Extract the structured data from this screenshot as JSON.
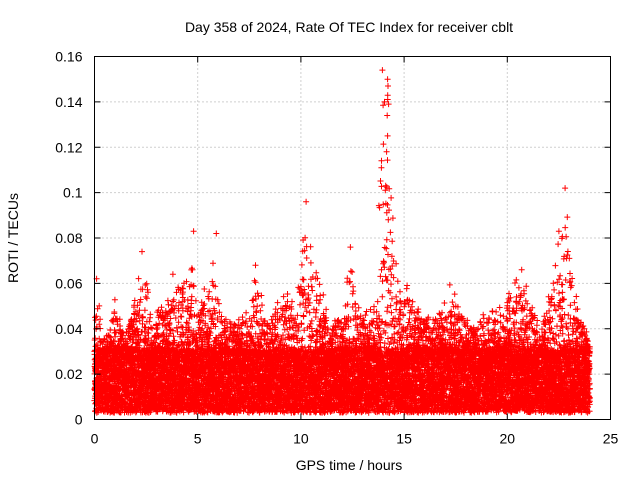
{
  "chart_data": {
    "type": "scatter",
    "title": "Day 358 of 2024, Rate Of TEC Index for receiver cblt",
    "xlabel": "GPS time / hours",
    "ylabel": "ROTI / TECUs",
    "xlim": [
      0,
      25
    ],
    "ylim": [
      0,
      0.16
    ],
    "x_ticks": [
      0,
      5,
      10,
      15,
      20,
      25
    ],
    "x_tick_labels": [
      "0",
      "5",
      "10",
      "15",
      "20",
      "25"
    ],
    "y_ticks": [
      0,
      0.02,
      0.04,
      0.06,
      0.08,
      0.1,
      0.12,
      0.14,
      0.16
    ],
    "y_tick_labels": [
      "0",
      "0.02",
      "0.04",
      "0.06",
      "0.08",
      "0.1",
      "0.12",
      "0.14",
      "0.16"
    ],
    "grid": true,
    "marker": "+",
    "color": "#ff0000",
    "data_x_range": [
      0,
      24
    ],
    "baseline_band": [
      0.003,
      0.03
    ],
    "envelope": [
      {
        "x": 0.0,
        "y": 0.045
      },
      {
        "x": 0.1,
        "y": 0.062
      },
      {
        "x": 0.5,
        "y": 0.035
      },
      {
        "x": 1.0,
        "y": 0.054
      },
      {
        "x": 1.5,
        "y": 0.04
      },
      {
        "x": 2.0,
        "y": 0.055
      },
      {
        "x": 2.3,
        "y": 0.074
      },
      {
        "x": 2.8,
        "y": 0.045
      },
      {
        "x": 3.3,
        "y": 0.06
      },
      {
        "x": 3.7,
        "y": 0.055
      },
      {
        "x": 4.0,
        "y": 0.065
      },
      {
        "x": 4.5,
        "y": 0.062
      },
      {
        "x": 4.8,
        "y": 0.083
      },
      {
        "x": 5.0,
        "y": 0.05
      },
      {
        "x": 5.5,
        "y": 0.062
      },
      {
        "x": 5.9,
        "y": 0.082
      },
      {
        "x": 6.2,
        "y": 0.045
      },
      {
        "x": 6.7,
        "y": 0.047
      },
      {
        "x": 7.0,
        "y": 0.045
      },
      {
        "x": 7.5,
        "y": 0.05
      },
      {
        "x": 7.8,
        "y": 0.068
      },
      {
        "x": 8.3,
        "y": 0.045
      },
      {
        "x": 8.8,
        "y": 0.052
      },
      {
        "x": 9.3,
        "y": 0.057
      },
      {
        "x": 9.8,
        "y": 0.05
      },
      {
        "x": 10.2,
        "y": 0.096
      },
      {
        "x": 10.6,
        "y": 0.07
      },
      {
        "x": 11.0,
        "y": 0.06
      },
      {
        "x": 11.5,
        "y": 0.045
      },
      {
        "x": 12.0,
        "y": 0.05
      },
      {
        "x": 12.4,
        "y": 0.076
      },
      {
        "x": 12.8,
        "y": 0.05
      },
      {
        "x": 13.3,
        "y": 0.048
      },
      {
        "x": 13.7,
        "y": 0.06
      },
      {
        "x": 13.9,
        "y": 0.155
      },
      {
        "x": 14.2,
        "y": 0.151
      },
      {
        "x": 14.5,
        "y": 0.09
      },
      {
        "x": 14.8,
        "y": 0.06
      },
      {
        "x": 15.3,
        "y": 0.06
      },
      {
        "x": 15.8,
        "y": 0.05
      },
      {
        "x": 16.3,
        "y": 0.045
      },
      {
        "x": 16.8,
        "y": 0.05
      },
      {
        "x": 17.2,
        "y": 0.06
      },
      {
        "x": 17.6,
        "y": 0.055
      },
      {
        "x": 18.0,
        "y": 0.045
      },
      {
        "x": 18.5,
        "y": 0.045
      },
      {
        "x": 19.0,
        "y": 0.05
      },
      {
        "x": 19.5,
        "y": 0.048
      },
      {
        "x": 20.0,
        "y": 0.057
      },
      {
        "x": 20.3,
        "y": 0.06
      },
      {
        "x": 20.7,
        "y": 0.066
      },
      {
        "x": 21.2,
        "y": 0.05
      },
      {
        "x": 21.7,
        "y": 0.045
      },
      {
        "x": 22.2,
        "y": 0.062
      },
      {
        "x": 22.5,
        "y": 0.083
      },
      {
        "x": 22.8,
        "y": 0.102
      },
      {
        "x": 23.2,
        "y": 0.062
      },
      {
        "x": 23.6,
        "y": 0.045
      },
      {
        "x": 24.0,
        "y": 0.035
      }
    ],
    "outliers": [
      {
        "x": 13.95,
        "y": 0.154
      },
      {
        "x": 14.2,
        "y": 0.15
      },
      {
        "x": 14.22,
        "y": 0.147
      },
      {
        "x": 14.05,
        "y": 0.14
      },
      {
        "x": 14.25,
        "y": 0.139
      },
      {
        "x": 14.18,
        "y": 0.134
      },
      {
        "x": 14.2,
        "y": 0.125
      },
      {
        "x": 14.15,
        "y": 0.118
      },
      {
        "x": 13.9,
        "y": 0.111
      },
      {
        "x": 22.8,
        "y": 0.102
      },
      {
        "x": 10.25,
        "y": 0.096
      },
      {
        "x": 0.1,
        "y": 0.062
      },
      {
        "x": 4.8,
        "y": 0.083
      },
      {
        "x": 5.9,
        "y": 0.082
      },
      {
        "x": 12.4,
        "y": 0.076
      },
      {
        "x": 2.3,
        "y": 0.074
      },
      {
        "x": 22.5,
        "y": 0.083
      },
      {
        "x": 20.7,
        "y": 0.066
      },
      {
        "x": 7.8,
        "y": 0.068
      },
      {
        "x": 3.8,
        "y": 0.064
      }
    ]
  }
}
